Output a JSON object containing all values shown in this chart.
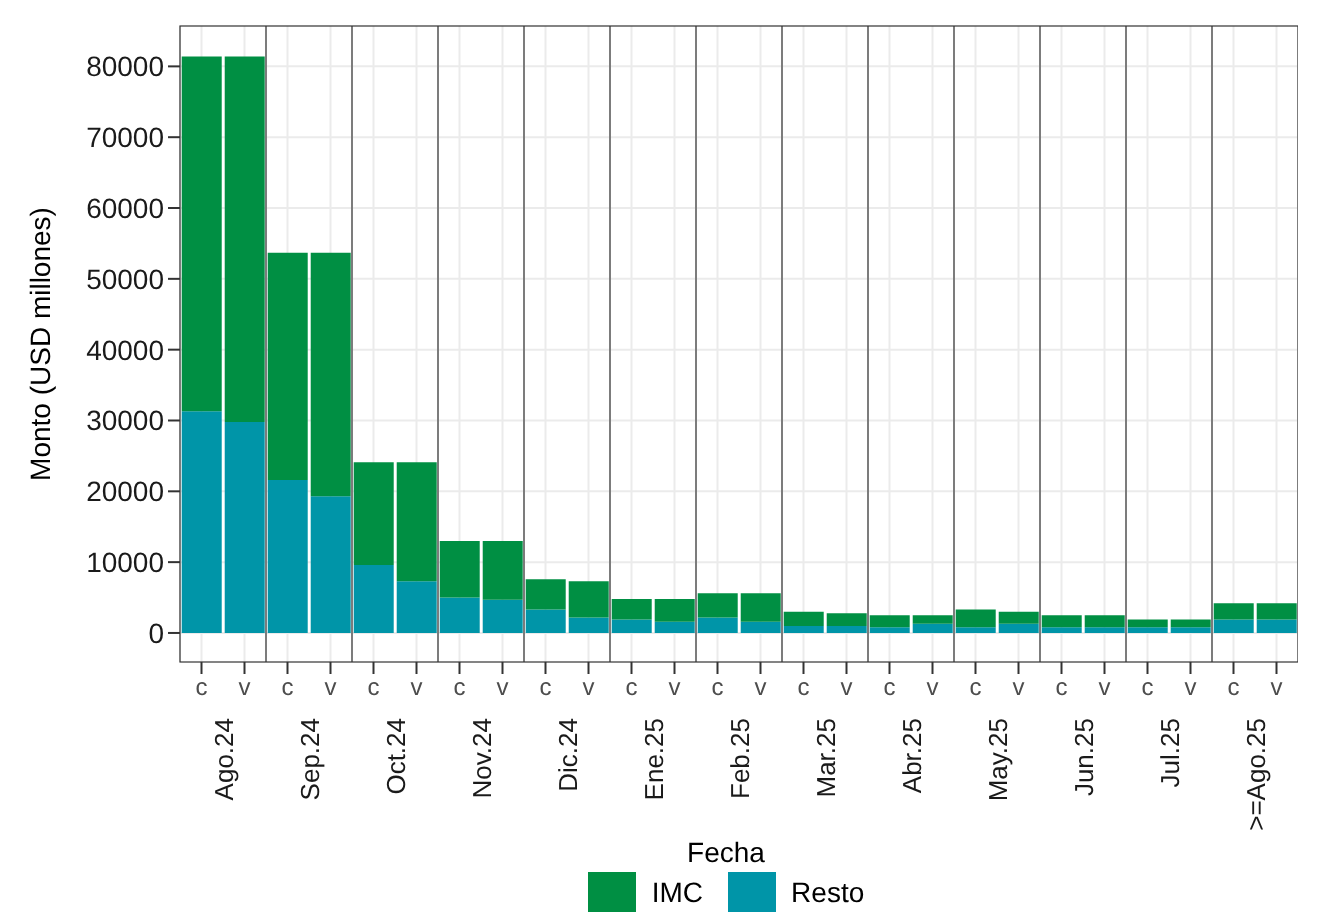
{
  "chart_data": [
    {
      "type": "bar",
      "title": "Ago.24",
      "ylabel": "Monto (USD millones)",
      "legend_title": "Fecha",
      "legend": "bottom",
      "categories": [
        "c",
        "v"
      ],
      "stacked": true,
      "grid": true,
      "ylim": [
        -4100,
        85700
      ],
      "yticks": [
        0,
        10000,
        20000,
        30000,
        40000,
        50000,
        60000,
        70000,
        80000
      ],
      "series": [
        {
          "name": "Resto",
          "color": "#0095a8",
          "values": [
            31300,
            29800
          ]
        },
        {
          "name": "IMC",
          "color": "#008f43",
          "values": [
            50100,
            51600
          ]
        }
      ]
    },
    {
      "type": "bar",
      "title": "Sep.24",
      "categories": [
        "c",
        "v"
      ],
      "stacked": true,
      "grid": true,
      "tick_labels": "x",
      "ylim": [
        -4100,
        85700
      ],
      "yticks": [
        0,
        10000,
        20000,
        30000,
        40000,
        50000,
        60000,
        70000,
        80000
      ],
      "series": [
        {
          "color": "#0095a8",
          "values": [
            21600,
            19300
          ]
        },
        {
          "color": "#008f43",
          "values": [
            32100,
            34400
          ]
        }
      ]
    },
    {
      "type": "bar",
      "title": "Oct.24",
      "categories": [
        "c",
        "v"
      ],
      "stacked": true,
      "grid": true,
      "tick_labels": "x",
      "ylim": [
        -4100,
        85700
      ],
      "yticks": [
        0,
        10000,
        20000,
        30000,
        40000,
        50000,
        60000,
        70000,
        80000
      ],
      "series": [
        {
          "color": "#0095a8",
          "values": [
            9600,
            7300
          ]
        },
        {
          "color": "#008f43",
          "values": [
            14500,
            16800
          ]
        }
      ]
    },
    {
      "type": "bar",
      "title": "Nov.24",
      "categories": [
        "c",
        "v"
      ],
      "stacked": true,
      "grid": true,
      "tick_labels": "x",
      "ylim": [
        -4100,
        85700
      ],
      "yticks": [
        0,
        10000,
        20000,
        30000,
        40000,
        50000,
        60000,
        70000,
        80000
      ],
      "series": [
        {
          "color": "#0095a8",
          "values": [
            5000,
            4700
          ]
        },
        {
          "color": "#008f43",
          "values": [
            8000,
            8300
          ]
        }
      ]
    },
    {
      "type": "bar",
      "title": "Dic.24",
      "categories": [
        "c",
        "v"
      ],
      "stacked": true,
      "grid": true,
      "tick_labels": "x",
      "ylim": [
        -4100,
        85700
      ],
      "yticks": [
        0,
        10000,
        20000,
        30000,
        40000,
        50000,
        60000,
        70000,
        80000
      ],
      "series": [
        {
          "color": "#0095a8",
          "values": [
            3300,
            2200
          ]
        },
        {
          "color": "#008f43",
          "values": [
            4300,
            5100
          ]
        }
      ]
    },
    {
      "type": "bar",
      "title": "Ene.25",
      "categories": [
        "c",
        "v"
      ],
      "stacked": true,
      "grid": true,
      "tick_labels": "x",
      "ylim": [
        -4100,
        85700
      ],
      "yticks": [
        0,
        10000,
        20000,
        30000,
        40000,
        50000,
        60000,
        70000,
        80000
      ],
      "series": [
        {
          "color": "#0095a8",
          "values": [
            1900,
            1600
          ]
        },
        {
          "color": "#008f43",
          "values": [
            2900,
            3200
          ]
        }
      ]
    },
    {
      "type": "bar",
      "title": "Feb.25",
      "categories": [
        "c",
        "v"
      ],
      "stacked": true,
      "grid": true,
      "tick_labels": "x",
      "ylim": [
        -4100,
        85700
      ],
      "yticks": [
        0,
        10000,
        20000,
        30000,
        40000,
        50000,
        60000,
        70000,
        80000
      ],
      "series": [
        {
          "color": "#0095a8",
          "values": [
            2200,
            1600
          ]
        },
        {
          "color": "#008f43",
          "values": [
            3400,
            4000
          ]
        }
      ]
    },
    {
      "type": "bar",
      "title": "Mar.25",
      "categories": [
        "c",
        "v"
      ],
      "stacked": true,
      "grid": true,
      "tick_labels": "x",
      "ylim": [
        -4100,
        85700
      ],
      "yticks": [
        0,
        10000,
        20000,
        30000,
        40000,
        50000,
        60000,
        70000,
        80000
      ],
      "series": [
        {
          "color": "#0095a8",
          "values": [
            1000,
            1000
          ]
        },
        {
          "color": "#008f43",
          "values": [
            2000,
            1800
          ]
        }
      ]
    },
    {
      "type": "bar",
      "title": "Abr.25",
      "categories": [
        "c",
        "v"
      ],
      "stacked": true,
      "grid": true,
      "tick_labels": "x",
      "ylim": [
        -4100,
        85700
      ],
      "yticks": [
        0,
        10000,
        20000,
        30000,
        40000,
        50000,
        60000,
        70000,
        80000
      ],
      "series": [
        {
          "color": "#0095a8",
          "values": [
            800,
            1300
          ]
        },
        {
          "color": "#008f43",
          "values": [
            1700,
            1200
          ]
        }
      ]
    },
    {
      "type": "bar",
      "title": "May.25",
      "categories": [
        "c",
        "v"
      ],
      "stacked": true,
      "grid": true,
      "tick_labels": "x",
      "ylim": [
        -4100,
        85700
      ],
      "yticks": [
        0,
        10000,
        20000,
        30000,
        40000,
        50000,
        60000,
        70000,
        80000
      ],
      "series": [
        {
          "color": "#0095a8",
          "values": [
            800,
            1300
          ]
        },
        {
          "color": "#008f43",
          "values": [
            2500,
            1700
          ]
        }
      ]
    },
    {
      "type": "bar",
      "title": "Jun.25",
      "categories": [
        "c",
        "v"
      ],
      "stacked": true,
      "grid": true,
      "tick_labels": "x",
      "ylim": [
        -4100,
        85700
      ],
      "yticks": [
        0,
        10000,
        20000,
        30000,
        40000,
        50000,
        60000,
        70000,
        80000
      ],
      "series": [
        {
          "color": "#0095a8",
          "values": [
            800,
            800
          ]
        },
        {
          "color": "#008f43",
          "values": [
            1700,
            1700
          ]
        }
      ]
    },
    {
      "type": "bar",
      "title": "Jul.25",
      "categories": [
        "c",
        "v"
      ],
      "stacked": true,
      "grid": true,
      "tick_labels": "x",
      "ylim": [
        -4100,
        85700
      ],
      "yticks": [
        0,
        10000,
        20000,
        30000,
        40000,
        50000,
        60000,
        70000,
        80000
      ],
      "series": [
        {
          "color": "#0095a8",
          "values": [
            800,
            800
          ]
        },
        {
          "color": "#008f43",
          "values": [
            1100,
            1100
          ]
        }
      ]
    },
    {
      "type": "bar",
      "title": ">=Ago.25",
      "categories": [
        "c",
        "v"
      ],
      "stacked": true,
      "grid": true,
      "tick_labels": "x",
      "ylim": [
        -4100,
        85700
      ],
      "yticks": [
        0,
        10000,
        20000,
        30000,
        40000,
        50000,
        60000,
        70000,
        80000
      ],
      "series": [
        {
          "color": "#0095a8",
          "values": [
            1900,
            1900
          ]
        },
        {
          "color": "#008f43",
          "values": [
            2300,
            2300
          ]
        }
      ]
    }
  ]
}
